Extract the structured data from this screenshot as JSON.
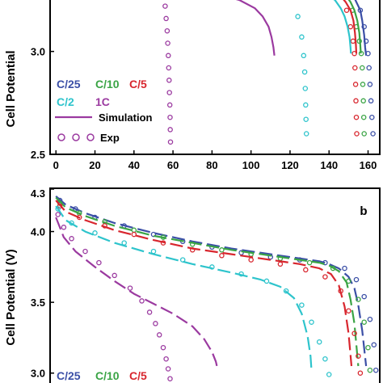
{
  "chart_data": [
    {
      "type": "line",
      "panel_label": "",
      "ylabel": "Cell Potential",
      "xlabel": "",
      "xlim": [
        -3,
        166
      ],
      "ylim": [
        2.5,
        3.25
      ],
      "x_ticks": [
        0,
        20,
        40,
        60,
        80,
        100,
        120,
        140,
        160
      ],
      "y_ticks": [
        2.5,
        3.0
      ],
      "legend": {
        "placement": "bottom-left",
        "rate_labels": [
          "C/25",
          "C/10",
          "C/5",
          "C/2",
          "1C"
        ],
        "simulation_label": "Simulation",
        "exp_label": "Exp"
      },
      "series": [
        {
          "name": "C/25",
          "color": "#3b4fa6",
          "simulation": {
            "x": [
              152,
              154,
              156,
              157,
              158,
              158.5,
              159
            ],
            "y": [
              3.28,
              3.24,
              3.2,
              3.15,
              3.08,
              3.02,
              2.98
            ]
          },
          "exp": {
            "x": [
              153,
              156,
              158,
              159,
              160,
              160.5,
              161,
              161.5,
              162,
              162.5
            ],
            "y": [
              3.27,
              3.2,
              3.12,
              3.05,
              2.99,
              2.92,
              2.84,
              2.76,
              2.68,
              2.6
            ]
          }
        },
        {
          "name": "C/10",
          "color": "#3aa445",
          "simulation": {
            "x": [
              148,
              151,
              153,
              154.5,
              155.5,
              156,
              156.3
            ],
            "y": [
              3.28,
              3.24,
              3.2,
              3.15,
              3.09,
              3.03,
              2.99
            ]
          },
          "exp": {
            "x": [
              149,
              152,
              154,
              155.5,
              156.5,
              157,
              157.3,
              157.6,
              157.8,
              158
            ],
            "y": [
              3.27,
              3.2,
              3.12,
              3.05,
              2.99,
              2.92,
              2.84,
              2.76,
              2.68,
              2.6
            ]
          }
        },
        {
          "name": "C/5",
          "color": "#d8262e",
          "simulation": {
            "x": [
              145,
              148.5,
              151,
              152.5,
              153.3,
              153.8,
              154
            ],
            "y": [
              3.28,
              3.24,
              3.2,
              3.15,
              3.09,
              3.03,
              2.99
            ]
          },
          "exp": {
            "x": [
              146,
              149,
              151,
              152.3,
              153,
              153.3,
              153.6,
              153.8,
              154,
              154.2
            ],
            "y": [
              3.27,
              3.2,
              3.12,
              3.05,
              2.99,
              2.92,
              2.84,
              2.76,
              2.68,
              2.6
            ]
          }
        },
        {
          "name": "C/2",
          "color": "#2ec4cc",
          "simulation": {
            "x": [
              138,
              143,
              146,
              148,
              149.5,
              150.5,
              151,
              151.2
            ],
            "y": [
              3.28,
              3.25,
              3.21,
              3.17,
              3.12,
              3.07,
              3.02,
              2.99
            ]
          },
          "exp": {
            "x": [
              121,
              124,
              126,
              127,
              127.5,
              127.8,
              128,
              128.2,
              128.4
            ],
            "y": [
              3.27,
              3.17,
              3.07,
              2.98,
              2.9,
              2.82,
              2.74,
              2.67,
              2.6
            ]
          }
        },
        {
          "name": "1C",
          "color": "#9b3aa0",
          "simulation": {
            "x": [
              82,
              94,
              102,
              106,
              109,
              110.5,
              111.5,
              112
            ],
            "y": [
              3.28,
              3.25,
              3.21,
              3.17,
              3.12,
              3.07,
              3.02,
              2.98
            ]
          },
          "exp": {
            "x": [
              55,
              56,
              56.5,
              57,
              57.3,
              57.6,
              57.8,
              58,
              58.2,
              58.4,
              58.5,
              58.6,
              58.7
            ],
            "y": [
              3.27,
              3.22,
              3.16,
              3.1,
              3.04,
              2.98,
              2.92,
              2.86,
              2.8,
              2.74,
              2.68,
              2.62,
              2.56
            ]
          }
        }
      ]
    },
    {
      "type": "line",
      "panel_label": "b",
      "ylabel": "Cell Potential (V)",
      "xlabel": "",
      "xlim": [
        -3,
        166
      ],
      "ylim": [
        2.93,
        4.3
      ],
      "x_ticks": [],
      "y_ticks": [
        3.0,
        3.5,
        4.0,
        4.3
      ],
      "legend": {
        "placement": "bottom-left",
        "rate_labels": [
          "C/25",
          "C/10",
          "C/5"
        ],
        "simulation_label": "",
        "exp_label": ""
      },
      "series": [
        {
          "name": "C/25",
          "color": "#3b4fa6",
          "simulation": {
            "x": [
              0,
              5,
              15,
              30,
              50,
              70,
              90,
              110,
              125,
              135,
              140,
              145,
              150,
              153,
              155,
              157,
              159
            ],
            "y": [
              4.25,
              4.19,
              4.13,
              4.06,
              3.99,
              3.93,
              3.88,
              3.84,
              3.81,
              3.79,
              3.77,
              3.74,
              3.68,
              3.6,
              3.48,
              3.3,
              3.05
            ]
          },
          "exp": {
            "x": [
              2,
              10,
              20,
              35,
              50,
              65,
              80,
              95,
              110,
              125,
              138,
              148,
              154,
              158,
              161,
              163,
              164
            ],
            "y": [
              4.22,
              4.16,
              4.1,
              4.04,
              3.98,
              3.93,
              3.89,
              3.85,
              3.82,
              3.8,
              3.78,
              3.74,
              3.66,
              3.54,
              3.38,
              3.2,
              3.02
            ]
          }
        },
        {
          "name": "C/10",
          "color": "#3aa445",
          "simulation": {
            "x": [
              0,
              5,
              15,
              30,
              50,
              70,
              90,
              110,
              125,
              135,
              140,
              145,
              149,
              151,
              153,
              155
            ],
            "y": [
              4.24,
              4.17,
              4.11,
              4.04,
              3.97,
              3.92,
              3.87,
              3.83,
              3.8,
              3.78,
              3.76,
              3.72,
              3.64,
              3.52,
              3.35,
              3.05
            ]
          },
          "exp": {
            "x": [
              2,
              12,
              25,
              40,
              55,
              70,
              85,
              100,
              115,
              130,
              142,
              150,
              155,
              158,
              160,
              161
            ],
            "y": [
              4.2,
              4.13,
              4.07,
              4.01,
              3.96,
              3.91,
              3.87,
              3.84,
              3.81,
              3.78,
              3.74,
              3.65,
              3.52,
              3.36,
              3.18,
              3.02
            ]
          }
        },
        {
          "name": "C/5",
          "color": "#d8262e",
          "simulation": {
            "x": [
              0,
              5,
              15,
              30,
              50,
              70,
              90,
              110,
              125,
              135,
              141,
              145,
              148,
              150,
              151.5
            ],
            "y": [
              4.22,
              4.14,
              4.08,
              4.01,
              3.94,
              3.88,
              3.84,
              3.8,
              3.77,
              3.74,
              3.7,
              3.62,
              3.47,
              3.28,
              3.05
            ]
          },
          "exp": {
            "x": [
              2,
              12,
              25,
              40,
              55,
              70,
              85,
              100,
              115,
              128,
              138,
              146,
              150,
              153,
              155,
              156
            ],
            "y": [
              4.18,
              4.1,
              4.04,
              3.98,
              3.92,
              3.87,
              3.83,
              3.8,
              3.77,
              3.73,
              3.68,
              3.58,
              3.44,
              3.28,
              3.12,
              3.0
            ]
          }
        },
        {
          "name": "C/2",
          "color": "#2ec4cc",
          "simulation": {
            "x": [
              0,
              5,
              15,
              30,
              50,
              70,
              90,
              105,
              115,
              122,
              126,
              129,
              130.5,
              131
            ],
            "y": [
              4.18,
              4.08,
              4.0,
              3.92,
              3.84,
              3.77,
              3.71,
              3.66,
              3.61,
              3.53,
              3.42,
              3.26,
              3.12,
              3.02
            ]
          },
          "exp": {
            "x": [
              1,
              8,
              20,
              35,
              50,
              65,
              80,
              95,
              108,
              118,
              126,
              131,
              135,
              138,
              140
            ],
            "y": [
              4.16,
              4.06,
              3.99,
              3.92,
              3.86,
              3.8,
              3.75,
              3.7,
              3.65,
              3.58,
              3.48,
              3.36,
              3.22,
              3.1,
              2.99
            ]
          }
        },
        {
          "name": "1C",
          "color": "#9b3aa0",
          "simulation": {
            "x": [
              0,
              4,
              10,
              20,
              30,
              40,
              50,
              60,
              70,
              76,
              80,
              82,
              83
            ],
            "y": [
              4.1,
              3.96,
              3.86,
              3.75,
              3.65,
              3.56,
              3.49,
              3.42,
              3.33,
              3.24,
              3.15,
              3.08,
              3.02
            ]
          },
          "exp": {
            "x": [
              1,
              4,
              8,
              15,
              22,
              30,
              38,
              44,
              48,
              51,
              53,
              55,
              56.5,
              57.5,
              58.5
            ],
            "y": [
              4.12,
              4.03,
              3.95,
              3.86,
              3.78,
              3.69,
              3.6,
              3.51,
              3.43,
              3.35,
              3.27,
              3.18,
              3.1,
              3.03,
              2.96
            ]
          }
        }
      ]
    }
  ]
}
